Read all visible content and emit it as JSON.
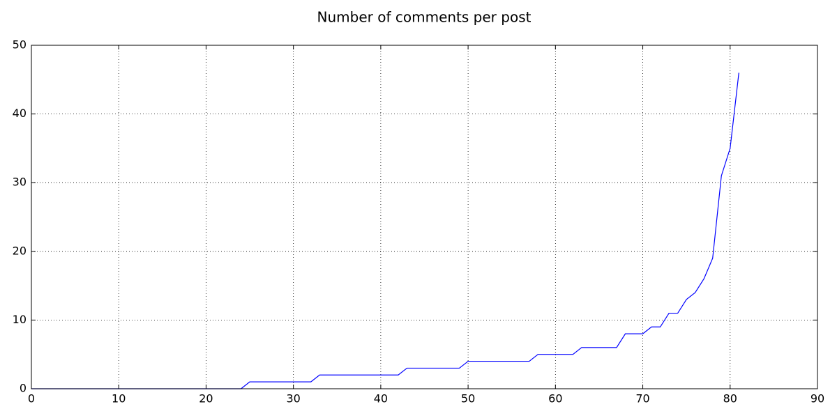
{
  "chart_data": {
    "type": "line",
    "title": "Number of comments per post",
    "x": [
      0,
      1,
      2,
      3,
      4,
      5,
      6,
      7,
      8,
      9,
      10,
      11,
      12,
      13,
      14,
      15,
      16,
      17,
      18,
      19,
      20,
      21,
      22,
      23,
      24,
      25,
      26,
      27,
      28,
      29,
      30,
      31,
      32,
      33,
      34,
      35,
      36,
      37,
      38,
      39,
      40,
      41,
      42,
      43,
      44,
      45,
      46,
      47,
      48,
      49,
      50,
      51,
      52,
      53,
      54,
      55,
      56,
      57,
      58,
      59,
      60,
      61,
      62,
      63,
      64,
      65,
      66,
      67,
      68,
      69,
      70,
      71,
      72,
      73,
      74,
      75,
      76,
      77,
      78,
      79,
      80,
      81
    ],
    "series": [
      {
        "color": "#0000ff",
        "values": [
          0,
          0,
          0,
          0,
          0,
          0,
          0,
          0,
          0,
          0,
          0,
          0,
          0,
          0,
          0,
          0,
          0,
          0,
          0,
          0,
          0,
          0,
          0,
          0,
          0,
          1,
          1,
          1,
          1,
          1,
          1,
          1,
          1,
          2,
          2,
          2,
          2,
          2,
          2,
          2,
          2,
          2,
          2,
          3,
          3,
          3,
          3,
          3,
          3,
          3,
          4,
          4,
          4,
          4,
          4,
          4,
          4,
          4,
          5,
          5,
          5,
          5,
          5,
          6,
          6,
          6,
          6,
          6,
          8,
          8,
          8,
          9,
          9,
          11,
          11,
          13,
          14,
          16,
          19,
          31,
          35,
          46
        ]
      }
    ],
    "xlim": [
      0,
      90
    ],
    "xticks": [
      0,
      10,
      20,
      30,
      40,
      50,
      60,
      70,
      80,
      90
    ],
    "ylim": [
      0,
      50
    ],
    "yticks": [
      0,
      10,
      20,
      30,
      40,
      50
    ],
    "grid": true
  }
}
